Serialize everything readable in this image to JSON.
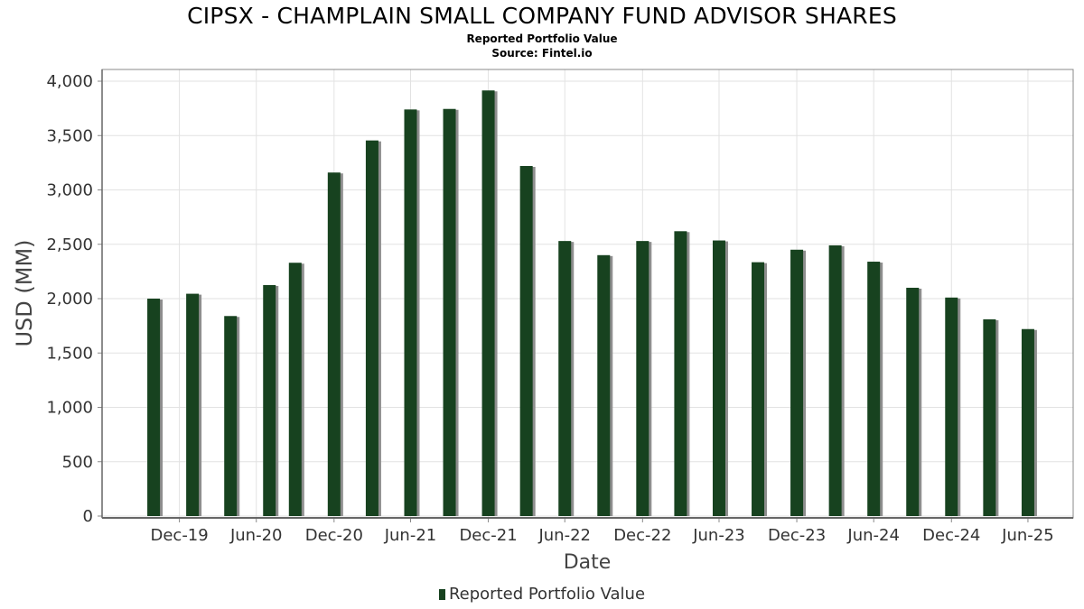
{
  "title": "CIPSX - CHAMPLAIN SMALL COMPANY FUND ADVISOR SHARES",
  "subtitle": "Reported Portfolio Value",
  "source": "Source: Fintel.io",
  "legend": {
    "label": "Reported Portfolio Value"
  },
  "colors": {
    "bar": "#17421f",
    "shadow": "#8e8e8e",
    "grid": "#e2e2e2",
    "frame": "#888888"
  },
  "chart_data": {
    "type": "bar",
    "title": "CIPSX - CHAMPLAIN SMALL COMPANY FUND ADVISOR SHARES",
    "subtitle": "Reported Portfolio Value",
    "xlabel": "Date",
    "ylabel": "USD (MM)",
    "ylim": [
      0,
      4000
    ],
    "yticks": [
      0,
      500,
      1000,
      1500,
      2000,
      2500,
      3000,
      3500,
      4000
    ],
    "ytick_labels": [
      "0",
      "500",
      "1,000",
      "1,500",
      "2,000",
      "2,500",
      "3,000",
      "3,500",
      "4,000"
    ],
    "xticks": [
      "Dec-19",
      "Jun-20",
      "Dec-20",
      "Jun-21",
      "Dec-21",
      "Jun-22",
      "Dec-22",
      "Jun-23",
      "Dec-23",
      "Jun-24",
      "Dec-24",
      "Jun-25"
    ],
    "xtick_dates": [
      "2019-12-31",
      "2020-06-30",
      "2020-12-31",
      "2021-06-30",
      "2021-12-31",
      "2022-06-30",
      "2022-12-31",
      "2023-06-30",
      "2023-12-31",
      "2024-06-30",
      "2024-12-31",
      "2025-06-30"
    ],
    "x_range": [
      "2019-07-01",
      "2025-10-15"
    ],
    "grid": true,
    "legend_position": "bottom-center",
    "series": [
      {
        "name": "Reported Portfolio Value",
        "points": [
          {
            "date": "2019-10-31",
            "value": 2000
          },
          {
            "date": "2020-01-31",
            "value": 2045
          },
          {
            "date": "2020-04-30",
            "value": 1840
          },
          {
            "date": "2020-07-31",
            "value": 2125
          },
          {
            "date": "2020-09-30",
            "value": 2330
          },
          {
            "date": "2020-12-31",
            "value": 3160
          },
          {
            "date": "2021-03-31",
            "value": 3455
          },
          {
            "date": "2021-06-30",
            "value": 3740
          },
          {
            "date": "2021-09-30",
            "value": 3745
          },
          {
            "date": "2021-12-31",
            "value": 3915
          },
          {
            "date": "2022-03-31",
            "value": 3220
          },
          {
            "date": "2022-06-30",
            "value": 2530
          },
          {
            "date": "2022-09-30",
            "value": 2400
          },
          {
            "date": "2022-12-31",
            "value": 2530
          },
          {
            "date": "2023-03-31",
            "value": 2620
          },
          {
            "date": "2023-06-30",
            "value": 2535
          },
          {
            "date": "2023-09-30",
            "value": 2335
          },
          {
            "date": "2023-12-31",
            "value": 2450
          },
          {
            "date": "2024-03-31",
            "value": 2490
          },
          {
            "date": "2024-06-30",
            "value": 2340
          },
          {
            "date": "2024-09-30",
            "value": 2100
          },
          {
            "date": "2024-12-31",
            "value": 2010
          },
          {
            "date": "2025-03-31",
            "value": 1810
          },
          {
            "date": "2025-06-30",
            "value": 1720
          }
        ]
      }
    ]
  }
}
